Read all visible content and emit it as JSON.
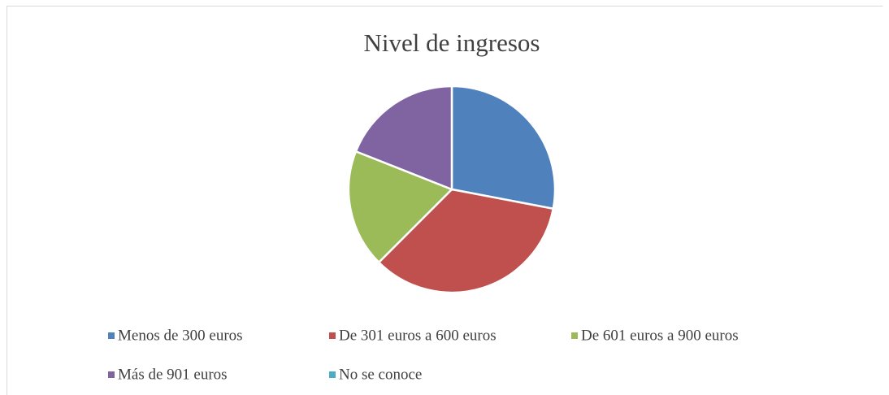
{
  "chart_data": {
    "type": "pie",
    "title": "Nivel de ingresos",
    "categories": [
      "Menos de 300 euros",
      "De 301 euros a 600 euros",
      "De 601 euros a 900 euros",
      "Más de 901 euros",
      "No se conoce"
    ],
    "values": [
      28,
      34.5,
      18.5,
      19,
      0
    ],
    "colors": [
      "#4f81bd",
      "#c0504d",
      "#9bbb59",
      "#8064a2",
      "#4bacc6"
    ],
    "legend": "bottom"
  }
}
